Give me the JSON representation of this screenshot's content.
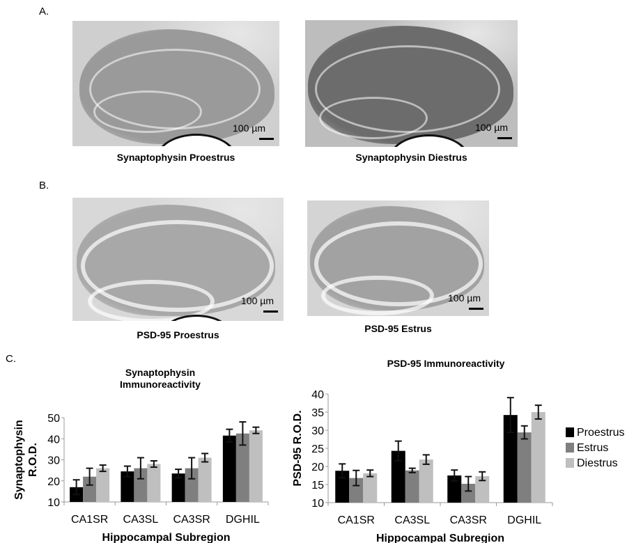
{
  "panels": {
    "A": {
      "label": "A.",
      "images": [
        {
          "caption": "Synaptophysin Proestrus",
          "scale": "100 µm",
          "tone": "#9a9a9a",
          "bg": "#cfcfcf"
        },
        {
          "caption": "Synaptophysin Diestrus",
          "scale": "100 µm",
          "tone": "#6c6c6c",
          "bg": "#bdbdbd"
        }
      ]
    },
    "B": {
      "label": "B.",
      "images": [
        {
          "caption": "PSD-95 Proestrus",
          "scale": "100 µm",
          "tone": "#a8a8a8",
          "bg": "#d8d8d8"
        },
        {
          "caption": "PSD-95 Estrus",
          "scale": "100 µm",
          "tone": "#a2a2a2",
          "bg": "#d4d4d4"
        }
      ]
    },
    "C": {
      "label": "C."
    }
  },
  "chart_data": [
    {
      "type": "bar",
      "title": "Synaptophysin Immunoreactivity",
      "title_lines": [
        "Synaptophysin",
        "Immunoreactivity"
      ],
      "xlabel": "Hippocampal Subregion",
      "ylabel": "Synaptophysin R.O.D.",
      "ylabel_lines": [
        "Synaptophysin",
        "R.O.D."
      ],
      "ylim": [
        10,
        50
      ],
      "yticks": [
        10,
        20,
        30,
        40,
        50
      ],
      "grid": false,
      "legend": false,
      "categories": [
        "CA1SR",
        "CA3SL",
        "CA3SR",
        "DGHIL"
      ],
      "series": [
        {
          "name": "Proestrus",
          "color": "#000000",
          "values": [
            17.0,
            24.5,
            23.5,
            41.5
          ],
          "errors": [
            3.5,
            2.5,
            2.0,
            3.0
          ]
        },
        {
          "name": "Estrus",
          "color": "#7f7f7f",
          "values": [
            22.0,
            26.0,
            26.0,
            42.5
          ],
          "errors": [
            4.0,
            5.0,
            5.0,
            5.5
          ]
        },
        {
          "name": "Diestrus",
          "color": "#bfbfbf",
          "values": [
            26.0,
            28.0,
            31.0,
            44.0
          ],
          "errors": [
            1.5,
            1.5,
            2.0,
            1.5
          ]
        }
      ]
    },
    {
      "type": "bar",
      "title": "PSD-95 Immunoreactivity",
      "title_lines": [
        "PSD-95 Immunoreactivity"
      ],
      "xlabel": "Hippocampal Subregion",
      "ylabel": "PSD-95 R.O.D.",
      "ylabel_lines": [
        "PSD-95 R.O.D."
      ],
      "ylim": [
        10,
        40
      ],
      "yticks": [
        10,
        15,
        20,
        25,
        30,
        35,
        40
      ],
      "grid": false,
      "legend": true,
      "legend_position": "right",
      "categories": [
        "CA1SR",
        "CA3SL",
        "CA3SR",
        "DGHIL"
      ],
      "series": [
        {
          "name": "Proestrus",
          "color": "#000000",
          "values": [
            18.8,
            24.3,
            17.5,
            34.2
          ],
          "errors": [
            1.9,
            2.7,
            1.5,
            4.8
          ]
        },
        {
          "name": "Estrus",
          "color": "#7f7f7f",
          "values": [
            16.8,
            18.9,
            15.2,
            29.4
          ],
          "errors": [
            2.1,
            0.6,
            2.0,
            1.8
          ]
        },
        {
          "name": "Diestrus",
          "color": "#bfbfbf",
          "values": [
            18.1,
            21.9,
            17.3,
            35.0
          ],
          "errors": [
            0.9,
            1.3,
            1.2,
            1.9
          ]
        }
      ]
    }
  ]
}
